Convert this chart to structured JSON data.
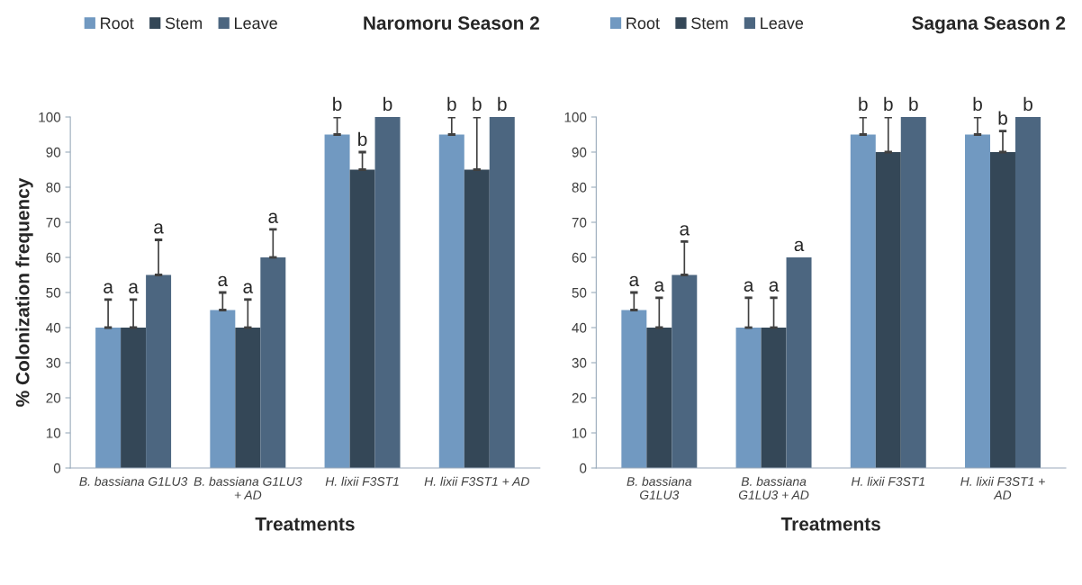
{
  "chart_data": [
    {
      "type": "bar",
      "title": "Naromoru Season 2",
      "xlabel": "Treatments",
      "ylabel": "% Colonization frequency",
      "categories": [
        "B. bassiana G1LU3",
        "B. bassiana G1LU3\n+ AD",
        "H. lixii F3ST1",
        "H. lixii F3ST1 + AD"
      ],
      "series": [
        {
          "name": "Root",
          "color": "#7199c1",
          "values": [
            40,
            45,
            95,
            95
          ],
          "errors": [
            8,
            5,
            5,
            5
          ],
          "value_labels": [
            "a",
            "a",
            "b",
            "b"
          ]
        },
        {
          "name": "Stem",
          "color": "#344757",
          "values": [
            40,
            40,
            85,
            85
          ],
          "errors": [
            8,
            8,
            5,
            15
          ],
          "value_labels": [
            "a",
            "a",
            "b",
            "b"
          ]
        },
        {
          "name": "Leave",
          "color": "#4c6680",
          "values": [
            55,
            60,
            100,
            100
          ],
          "errors": [
            10,
            8,
            null,
            null
          ],
          "value_labels": [
            "a",
            "a",
            "b",
            "b"
          ]
        }
      ],
      "ylim": [
        0,
        100
      ],
      "yticks": [
        0,
        10,
        20,
        30,
        40,
        50,
        60,
        70,
        80,
        90,
        100
      ],
      "grid": false,
      "legend": "top left"
    },
    {
      "type": "bar",
      "title": "Sagana Season 2",
      "xlabel": "Treatments",
      "categories": [
        "B. bassiana\nG1LU3",
        "B. bassiana\nG1LU3 + AD",
        "H. lixii F3ST1",
        "H. lixii F3ST1 +\nAD"
      ],
      "series": [
        {
          "name": "Root",
          "color": "#7199c1",
          "values": [
            45,
            40,
            95,
            95
          ],
          "errors": [
            5,
            8.5,
            5,
            5
          ],
          "value_labels": [
            "a",
            "a",
            "b",
            "b"
          ]
        },
        {
          "name": "Stem",
          "color": "#344757",
          "values": [
            40,
            40,
            90,
            90
          ],
          "errors": [
            8.5,
            8.5,
            10,
            6
          ],
          "value_labels": [
            "a",
            "a",
            "b",
            "b"
          ]
        },
        {
          "name": "Leave",
          "color": "#4c6680",
          "values": [
            55,
            60,
            100,
            100
          ],
          "errors": [
            9.5,
            null,
            null,
            null
          ],
          "value_labels": [
            "a",
            "a",
            "b",
            "b"
          ]
        }
      ],
      "ylim": [
        0,
        100
      ],
      "yticks": [
        0,
        10,
        20,
        30,
        40,
        50,
        60,
        70,
        80,
        90,
        100
      ],
      "grid": false,
      "legend": "top left"
    }
  ]
}
